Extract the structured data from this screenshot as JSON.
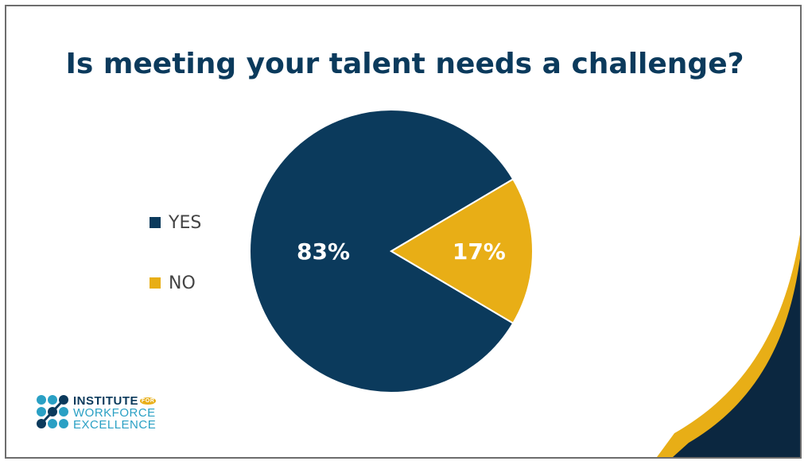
{
  "chart_data": {
    "type": "pie",
    "title": "Is meeting your talent needs a challenge?",
    "categories": [
      "YES",
      "NO"
    ],
    "values": [
      83,
      17
    ],
    "data_labels": [
      "83%",
      "17%"
    ],
    "colors": [
      "#0b3a5c",
      "#e8ae16"
    ],
    "legend_position": "left"
  },
  "logo": {
    "line1": "INSTITUTE",
    "for": "FOR",
    "line2": "WORKFORCE",
    "line3": "EXCELLENCE"
  },
  "colors": {
    "navy": "#0b3a5c",
    "gold": "#e8ae16",
    "teal": "#2aa0c4"
  }
}
